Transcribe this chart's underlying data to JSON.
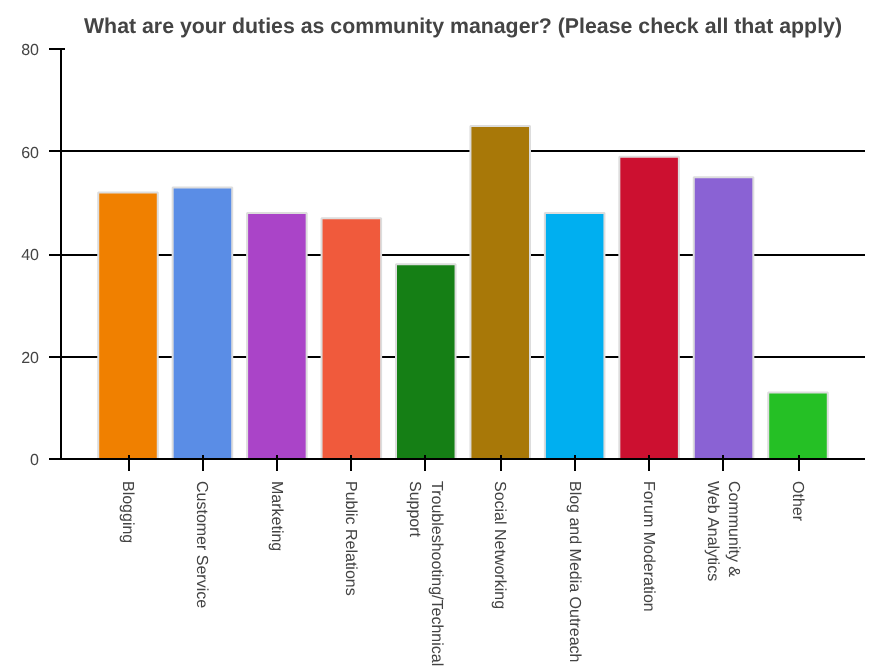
{
  "chart_data": {
    "type": "bar",
    "title": "What are your duties as community manager? (Please check all that apply)",
    "categories": [
      "Blogging",
      "Customer Service",
      "Marketing",
      "Public Relations",
      "Troubleshooting/Technical\nSupport",
      "Social Networking",
      "Blog and Media Outreach",
      "Forum Moderation",
      "Community &\nWeb Analytics",
      "Other"
    ],
    "values": [
      52,
      53,
      48,
      47,
      38,
      65,
      48,
      59,
      55,
      13
    ],
    "colors": [
      "#f08000",
      "#5a8de6",
      "#aa44c8",
      "#f05a3c",
      "#157f15",
      "#a87808",
      "#00aff0",
      "#cc1030",
      "#8a62d4",
      "#25c025"
    ],
    "ylim": [
      0,
      80
    ],
    "yticks": [
      0,
      20,
      40,
      60,
      80
    ],
    "grid": "y"
  }
}
